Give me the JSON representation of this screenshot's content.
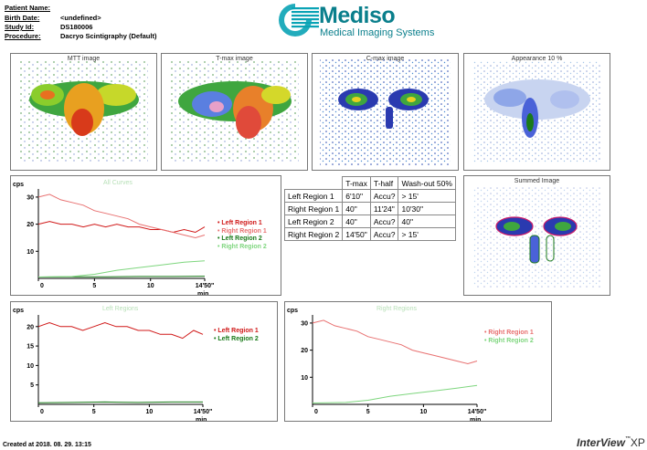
{
  "header": {
    "patient_name_label": "Patient Name:",
    "birth_date_label": "Birth Date:",
    "birth_date_value": "<undefined>",
    "study_id_label": "Study Id:",
    "study_id_value": "DS180006",
    "procedure_label": "Procedure:",
    "procedure_value": "Dacryo Scintigraphy (Default)"
  },
  "logo": {
    "brand": "Mediso",
    "subtitle": "Medical Imaging Systems"
  },
  "images": {
    "mtt": "MTT image",
    "tmax": "T-max image",
    "cmax": "C-max image",
    "appearance": "Appearance 10 %",
    "summed": "Summed Image"
  },
  "table": {
    "headers": [
      "",
      "T-max",
      "T-half",
      "Wash-out 50%"
    ],
    "rows": [
      [
        "Left Region 1",
        "6'10\"",
        "Accu?",
        ">  15'"
      ],
      [
        "Right Region 1",
        "40\"",
        "11'24\"",
        "10'30\""
      ],
      [
        "Left Region 2",
        "40\"",
        "Accu?",
        "40\""
      ],
      [
        "Right Region 2",
        "14'50\"",
        "Accu?",
        ">  15'"
      ]
    ]
  },
  "colors": {
    "left1": "#d01818",
    "right1": "#e87070",
    "left2": "#1a7a1a",
    "right2": "#7ed67e"
  },
  "charts": {
    "all": {
      "title": "All Curves",
      "ylabel": "cps",
      "xlabel": "min",
      "yticks": [
        10,
        20,
        30
      ],
      "xticks": [
        "0",
        "5",
        "10",
        "14'50\""
      ],
      "legend": [
        "Left Region 1",
        "Right Region 1",
        "Left Region 2",
        "Right Region 2"
      ]
    },
    "left": {
      "title": "Left Regions",
      "ylabel": "cps",
      "xlabel": "min",
      "yticks": [
        5,
        10,
        15,
        20
      ],
      "xticks": [
        "0",
        "5",
        "10",
        "14'50\""
      ],
      "legend": [
        "Left Region 1",
        "Left Region 2"
      ]
    },
    "right": {
      "title": "Right Regions",
      "ylabel": "cps",
      "xlabel": "min",
      "yticks": [
        10,
        20,
        30
      ],
      "xticks": [
        "0",
        "5",
        "10",
        "14'50\""
      ],
      "legend": [
        "Right Region 1",
        "Right Region 2"
      ]
    }
  },
  "chart_data": [
    {
      "type": "line",
      "title": "All Curves",
      "xlabel": "min",
      "ylabel": "cps",
      "xlim": [
        0,
        14.83
      ],
      "ylim": [
        0,
        33
      ],
      "series": [
        {
          "name": "Left Region 1",
          "x": [
            0,
            1,
            2,
            3,
            4,
            5,
            6,
            7,
            8,
            9,
            10,
            11,
            12,
            13,
            14,
            14.83
          ],
          "values": [
            20,
            21,
            20,
            20,
            19,
            20,
            19,
            20,
            19,
            19,
            18,
            18,
            17,
            18,
            17,
            19
          ]
        },
        {
          "name": "Right Region 1",
          "x": [
            0,
            1,
            2,
            3,
            4,
            5,
            6,
            7,
            8,
            9,
            10,
            11,
            12,
            13,
            14,
            14.83
          ],
          "values": [
            30,
            31,
            29,
            28,
            27,
            25,
            24,
            23,
            22,
            20,
            19,
            18,
            17,
            16,
            15,
            16
          ]
        },
        {
          "name": "Left Region 2",
          "x": [
            0,
            3,
            6,
            9,
            12,
            14.83
          ],
          "values": [
            0.5,
            0.6,
            0.6,
            0.7,
            0.7,
            0.8
          ]
        },
        {
          "name": "Right Region 2",
          "x": [
            0,
            3,
            5,
            7,
            9,
            11,
            13,
            14.83
          ],
          "values": [
            0.5,
            0.7,
            1.5,
            3,
            4,
            5,
            6,
            6.5
          ]
        }
      ]
    },
    {
      "type": "line",
      "title": "Left Regions",
      "xlabel": "min",
      "ylabel": "cps",
      "xlim": [
        0,
        14.83
      ],
      "ylim": [
        0,
        23
      ],
      "series": [
        {
          "name": "Left Region 1",
          "x": [
            0,
            1,
            2,
            3,
            4,
            5,
            6,
            7,
            8,
            9,
            10,
            11,
            12,
            13,
            14,
            14.83
          ],
          "values": [
            20,
            21,
            20,
            20,
            19,
            20,
            21,
            20,
            20,
            19,
            19,
            18,
            18,
            17,
            19,
            18
          ]
        },
        {
          "name": "Left Region 2",
          "x": [
            0,
            3,
            6,
            9,
            12,
            14.83
          ],
          "values": [
            0.4,
            0.5,
            0.6,
            0.5,
            0.6,
            0.6
          ]
        }
      ]
    },
    {
      "type": "line",
      "title": "Right Regions",
      "xlabel": "min",
      "ylabel": "cps",
      "xlim": [
        0,
        14.83
      ],
      "ylim": [
        0,
        33
      ],
      "series": [
        {
          "name": "Right Region 1",
          "x": [
            0,
            1,
            2,
            3,
            4,
            5,
            6,
            7,
            8,
            9,
            10,
            11,
            12,
            13,
            14,
            14.83
          ],
          "values": [
            30,
            31,
            29,
            28,
            27,
            25,
            24,
            23,
            22,
            20,
            19,
            18,
            17,
            16,
            15,
            16
          ]
        },
        {
          "name": "Right Region 2",
          "x": [
            0,
            3,
            5,
            7,
            9,
            11,
            13,
            14.83
          ],
          "values": [
            0.5,
            0.7,
            1.5,
            3,
            4,
            5,
            6,
            7
          ]
        }
      ]
    }
  ],
  "footer": {
    "created": "Created at 2018. 08. 29. 13:15",
    "brand_main": "InterView",
    "brand_tm": "™",
    "brand_suffix": "XP"
  }
}
